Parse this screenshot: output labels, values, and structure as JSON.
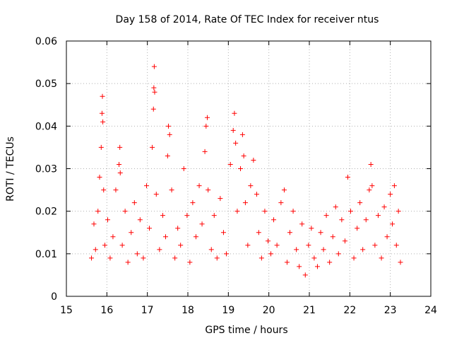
{
  "chart_data": {
    "type": "scatter",
    "title": "Day 158 of 2014, Rate Of TEC Index for receiver ntus",
    "xlabel": "GPS time / hours",
    "ylabel": "ROTI / TECUs",
    "xlim": [
      15,
      24
    ],
    "ylim": [
      0,
      0.06
    ],
    "x_ticks": [
      15,
      16,
      17,
      18,
      19,
      20,
      21,
      22,
      23,
      24
    ],
    "x_tick_labels": [
      "15",
      "16",
      "17",
      "18",
      "19",
      "20",
      "21",
      "22",
      "23",
      "24"
    ],
    "y_ticks": [
      0,
      0.01,
      0.02,
      0.03,
      0.04,
      0.05,
      0.06
    ],
    "y_tick_labels": [
      "0",
      "0.01",
      "0.02",
      "0.03",
      "0.04",
      "0.05",
      "0.06"
    ],
    "grid": true,
    "marker": "+",
    "color": "#ff0000",
    "series": [
      {
        "name": "ROTI",
        "x": [
          15.62,
          15.68,
          15.72,
          15.78,
          15.82,
          15.86,
          15.88,
          15.89,
          15.9,
          15.92,
          15.95,
          16.02,
          16.08,
          16.15,
          16.22,
          16.3,
          16.32,
          16.33,
          16.38,
          16.45,
          16.52,
          16.6,
          16.68,
          16.75,
          16.82,
          16.9,
          16.98,
          17.05,
          17.12,
          17.15,
          17.16,
          17.17,
          17.18,
          17.22,
          17.3,
          17.38,
          17.45,
          17.5,
          17.52,
          17.55,
          17.6,
          17.68,
          17.75,
          17.82,
          17.9,
          17.98,
          18.05,
          18.12,
          18.2,
          18.28,
          18.35,
          18.42,
          18.45,
          18.48,
          18.5,
          18.58,
          18.65,
          18.72,
          18.8,
          18.88,
          18.95,
          19.05,
          19.12,
          19.15,
          19.18,
          19.22,
          19.3,
          19.35,
          19.38,
          19.42,
          19.48,
          19.55,
          19.62,
          19.7,
          19.75,
          19.82,
          19.9,
          19.98,
          20.05,
          20.12,
          20.2,
          20.3,
          20.38,
          20.45,
          20.52,
          20.6,
          20.68,
          20.75,
          20.82,
          20.9,
          20.98,
          21.05,
          21.12,
          21.2,
          21.28,
          21.35,
          21.42,
          21.5,
          21.58,
          21.65,
          21.72,
          21.8,
          21.88,
          21.95,
          22.02,
          22.1,
          22.18,
          22.25,
          22.32,
          22.4,
          22.48,
          22.52,
          22.55,
          22.62,
          22.7,
          22.78,
          22.85,
          22.92,
          23.0,
          23.05,
          23.1,
          23.15,
          23.2,
          23.25
        ],
        "y": [
          0.009,
          0.017,
          0.011,
          0.02,
          0.028,
          0.035,
          0.043,
          0.047,
          0.041,
          0.025,
          0.012,
          0.018,
          0.009,
          0.014,
          0.025,
          0.031,
          0.035,
          0.029,
          0.012,
          0.02,
          0.008,
          0.015,
          0.022,
          0.01,
          0.018,
          0.009,
          0.026,
          0.016,
          0.035,
          0.044,
          0.049,
          0.054,
          0.048,
          0.024,
          0.011,
          0.019,
          0.014,
          0.033,
          0.04,
          0.038,
          0.025,
          0.009,
          0.016,
          0.012,
          0.03,
          0.019,
          0.008,
          0.022,
          0.014,
          0.026,
          0.017,
          0.034,
          0.04,
          0.042,
          0.025,
          0.011,
          0.019,
          0.009,
          0.023,
          0.015,
          0.01,
          0.031,
          0.039,
          0.043,
          0.036,
          0.02,
          0.03,
          0.038,
          0.033,
          0.022,
          0.012,
          0.026,
          0.032,
          0.024,
          0.015,
          0.009,
          0.02,
          0.013,
          0.01,
          0.018,
          0.012,
          0.022,
          0.025,
          0.008,
          0.015,
          0.02,
          0.011,
          0.007,
          0.017,
          0.005,
          0.012,
          0.016,
          0.009,
          0.007,
          0.015,
          0.011,
          0.019,
          0.008,
          0.014,
          0.021,
          0.01,
          0.018,
          0.013,
          0.028,
          0.02,
          0.009,
          0.016,
          0.022,
          0.011,
          0.018,
          0.025,
          0.031,
          0.026,
          0.012,
          0.019,
          0.009,
          0.021,
          0.014,
          0.024,
          0.017,
          0.026,
          0.012,
          0.02,
          0.008
        ]
      }
    ]
  }
}
